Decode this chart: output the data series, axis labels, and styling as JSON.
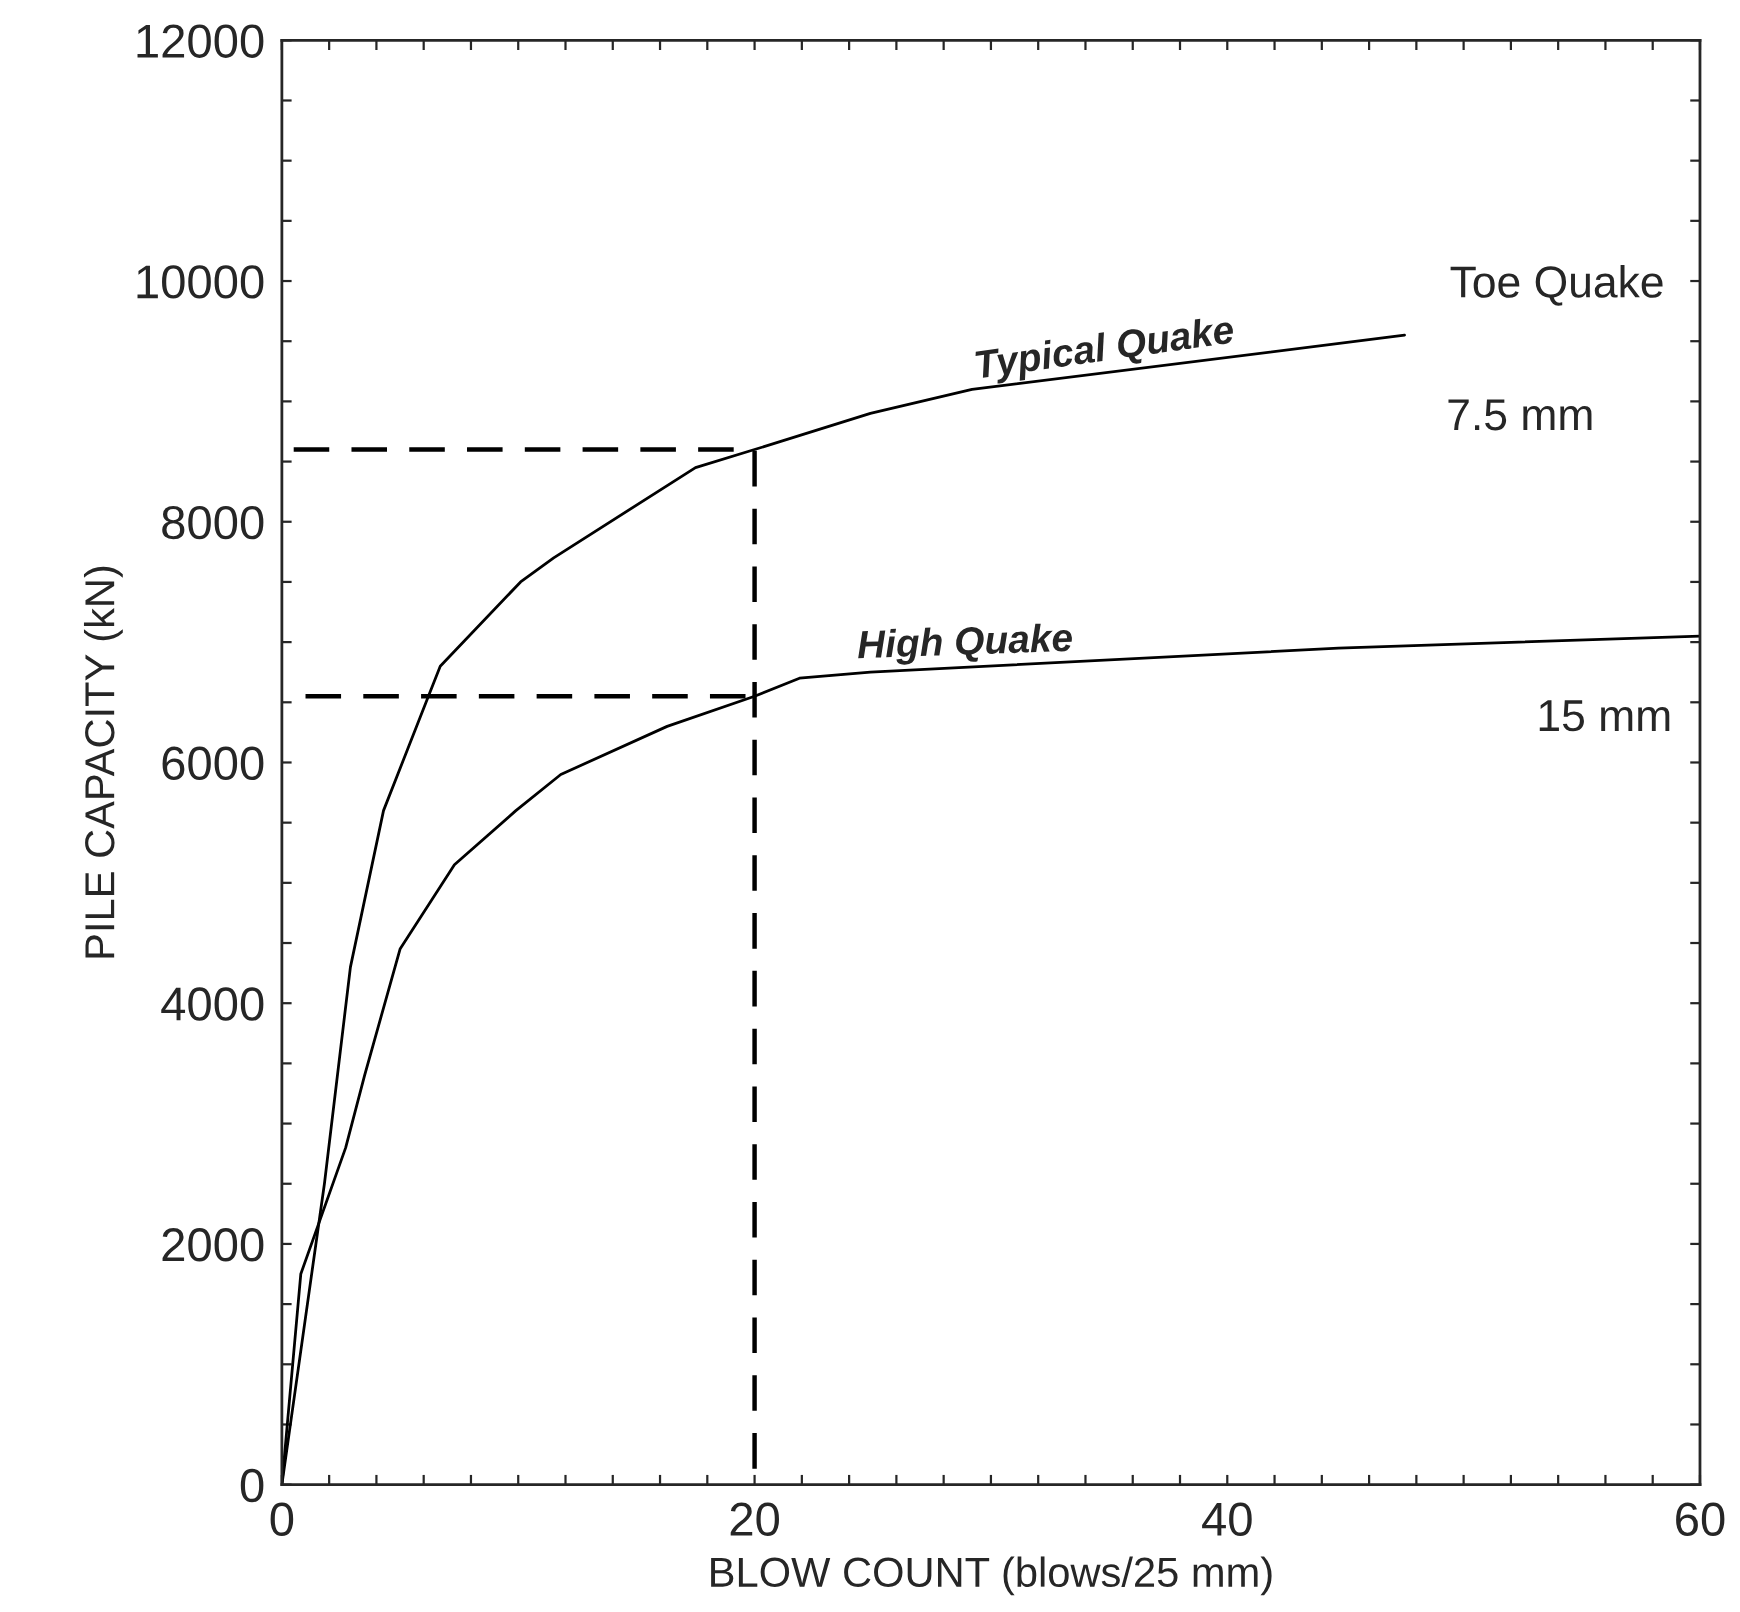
{
  "chart_data": {
    "type": "line",
    "xlabel": "BLOW COUNT (blows/25 mm)",
    "ylabel": "PILE CAPACITY (kN)",
    "xlim": [
      0,
      60
    ],
    "ylim": [
      0,
      12000
    ],
    "xticks": [
      0,
      {
        "value": 2,
        "label": null
      },
      {
        "value": 4,
        "label": null
      },
      {
        "value": 6,
        "label": null
      },
      {
        "value": 8,
        "label": null
      },
      {
        "value": 10,
        "label": null
      },
      {
        "value": 12,
        "label": null
      },
      {
        "value": 14,
        "label": null
      },
      {
        "value": 16,
        "label": null
      },
      {
        "value": 18,
        "label": null
      },
      20,
      {
        "value": 22,
        "label": null
      },
      {
        "value": 24,
        "label": null
      },
      {
        "value": 26,
        "label": null
      },
      {
        "value": 28,
        "label": null
      },
      {
        "value": 30,
        "label": null
      },
      {
        "value": 32,
        "label": null
      },
      {
        "value": 34,
        "label": null
      },
      {
        "value": 36,
        "label": null
      },
      {
        "value": 38,
        "label": null
      },
      40,
      {
        "value": 42,
        "label": null
      },
      {
        "value": 44,
        "label": null
      },
      {
        "value": 46,
        "label": null
      },
      {
        "value": 48,
        "label": null
      },
      {
        "value": 50,
        "label": null
      },
      {
        "value": 52,
        "label": null
      },
      {
        "value": 54,
        "label": null
      },
      {
        "value": 56,
        "label": null
      },
      {
        "value": 58,
        "label": null
      },
      60
    ],
    "yticks": [
      0,
      {
        "value": 500,
        "label": null
      },
      {
        "value": 1000,
        "label": null
      },
      {
        "value": 1500,
        "label": null
      },
      2000,
      {
        "value": 2500,
        "label": null
      },
      {
        "value": 3000,
        "label": null
      },
      {
        "value": 3500,
        "label": null
      },
      4000,
      {
        "value": 4500,
        "label": null
      },
      {
        "value": 5000,
        "label": null
      },
      {
        "value": 5500,
        "label": null
      },
      6000,
      {
        "value": 6500,
        "label": null
      },
      {
        "value": 7000,
        "label": null
      },
      {
        "value": 7500,
        "label": null
      },
      8000,
      {
        "value": 8500,
        "label": null
      },
      {
        "value": 9000,
        "label": null
      },
      {
        "value": 9500,
        "label": null
      },
      10000,
      {
        "value": 10500,
        "label": null
      },
      {
        "value": 11000,
        "label": null
      },
      {
        "value": 11500,
        "label": null
      },
      12000
    ],
    "series": [
      {
        "color": "#000000",
        "line_style": "solid",
        "x": [
          0,
          1.8,
          2.9,
          4.3,
          6.1,
          6.7,
          10.1,
          11.5,
          17.5,
          20,
          24.9,
          29.2,
          47.5
        ],
        "values": [
          0,
          2500,
          4300,
          5600,
          6500,
          6800,
          7500,
          7700,
          8450,
          8600,
          8900,
          9100,
          9550
        ]
      },
      {
        "color": "#000000",
        "line_style": "solid",
        "x": [
          0,
          0.8,
          2.7,
          3.5,
          5.0,
          7.3,
          9.9,
          11.8,
          16.3,
          20,
          21.9,
          24.9,
          44.7,
          60
        ],
        "values": [
          0,
          1750,
          2800,
          3400,
          4450,
          5150,
          5600,
          5900,
          6300,
          6550,
          6700,
          6750,
          6950,
          7050
        ]
      },
      {
        "color": "#000000",
        "line_style": "dashed",
        "x": [
          0.5,
          20,
          20
        ],
        "values": [
          8600,
          8600,
          0
        ]
      },
      {
        "color": "#000000",
        "line_style": "dashed",
        "x": [
          1.0,
          20
        ],
        "values": [
          6550,
          6550
        ]
      }
    ],
    "annotations": [
      "Toe Quake",
      {
        "text": "7.5 mm",
        "x": 47.5,
        "y": 9550
      },
      {
        "text": "15 mm",
        "x": 60,
        "y": 7050
      },
      {
        "text": "Typical Quake",
        "x": 29.2,
        "y": 9100
      },
      {
        "text": "High Quake",
        "x": 24.9,
        "y": 6750
      }
    ],
    "grid": false,
    "legend": false
  }
}
